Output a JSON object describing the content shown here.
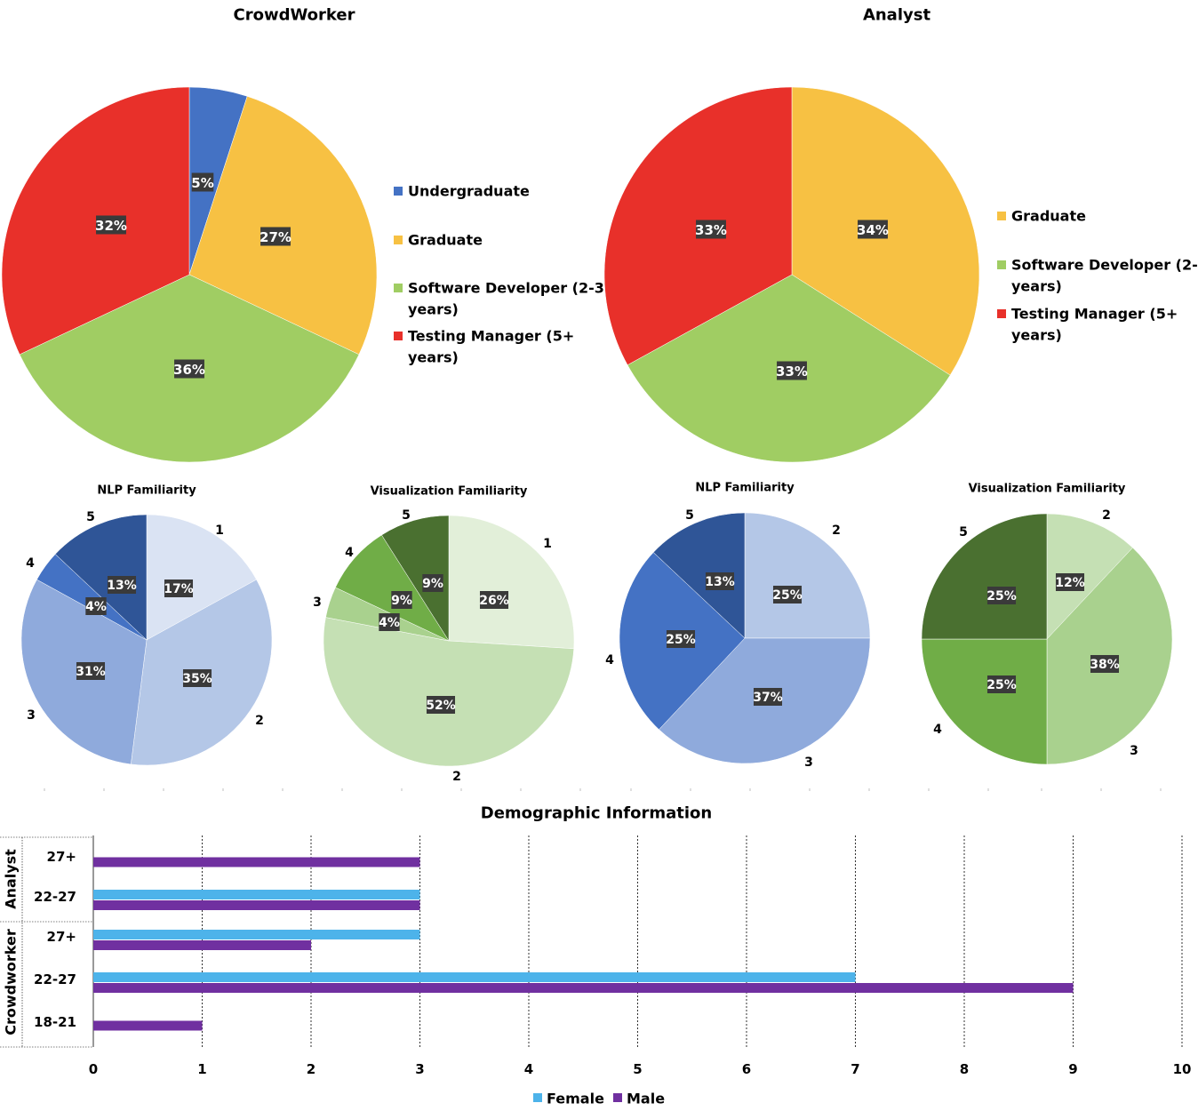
{
  "colors": {
    "label_bg": "#3a3a3a",
    "female": "#4db3ea",
    "male": "#7030a0"
  },
  "chart_data": [
    {
      "type": "pie",
      "title": "CrowdWorker",
      "slices": [
        {
          "label": "Undergraduate",
          "value": 5,
          "text": "5%",
          "color": "#4472c4"
        },
        {
          "label": "Graduate",
          "value": 27,
          "text": "27%",
          "color": "#f7c143"
        },
        {
          "label": "Software Developer (2-3 years)",
          "value": 36,
          "text": "36%",
          "color": "#a0cd63"
        },
        {
          "label": "Testing Manager (5+ years)",
          "value": 32,
          "text": "32%",
          "color": "#e8302a"
        }
      ],
      "legend": [
        {
          "lines": [
            "Undergraduate"
          ],
          "color": "#4472c4"
        },
        {
          "lines": [
            "Graduate"
          ],
          "color": "#f7c143"
        },
        {
          "lines": [
            "Software Developer (2-3",
            "years)"
          ],
          "color": "#a0cd63"
        },
        {
          "lines": [
            "Testing Manager (5+",
            "years)"
          ],
          "color": "#e8302a"
        }
      ],
      "legend_placement": "right"
    },
    {
      "type": "pie",
      "title": "Analyst",
      "slices": [
        {
          "label": "Graduate",
          "value": 34,
          "text": "34%",
          "color": "#f7c143"
        },
        {
          "label": "Software Developer (2-3 years)",
          "value": 33,
          "text": "33%",
          "color": "#a0cd63"
        },
        {
          "label": "Testing Manager (5+ years)",
          "value": 33,
          "text": "33%",
          "color": "#e8302a"
        }
      ],
      "legend": [
        {
          "lines": [
            "Graduate"
          ],
          "color": "#f7c143"
        },
        {
          "lines": [
            "Software Developer (2-3",
            "years)"
          ],
          "color": "#a0cd63"
        },
        {
          "lines": [
            "Testing Manager (5+",
            "years)"
          ],
          "color": "#e8302a"
        }
      ],
      "legend_placement": "right"
    },
    {
      "type": "pie",
      "title": "NLP Familiarity",
      "slices": [
        {
          "label": "1",
          "value": 17,
          "text": "17%",
          "color": "#dae3f3"
        },
        {
          "label": "2",
          "value": 35,
          "text": "35%",
          "color": "#b4c7e7"
        },
        {
          "label": "3",
          "value": 31,
          "text": "31%",
          "color": "#8faadc"
        },
        {
          "label": "4",
          "value": 4,
          "text": "4%",
          "color": "#4472c4"
        },
        {
          "label": "5",
          "value": 13,
          "text": "13%",
          "color": "#2f5597"
        }
      ]
    },
    {
      "type": "pie",
      "title": "Visualization Familiarity",
      "slices": [
        {
          "label": "1",
          "value": 26,
          "text": "26%",
          "color": "#e2efd9"
        },
        {
          "label": "2",
          "value": 52,
          "text": "52%",
          "color": "#c5e0b4"
        },
        {
          "label": "3",
          "value": 4,
          "text": "4%",
          "color": "#a9d18e"
        },
        {
          "label": "4",
          "value": 9,
          "text": "9%",
          "color": "#70ad47"
        },
        {
          "label": "5",
          "value": 9,
          "text": "9%",
          "color": "#4a7030"
        }
      ]
    },
    {
      "type": "pie",
      "title": "NLP Familiarity",
      "slices": [
        {
          "label": "2",
          "value": 25,
          "text": "25%",
          "color": "#b4c7e7"
        },
        {
          "label": "3",
          "value": 37,
          "text": "37%",
          "color": "#8faadc"
        },
        {
          "label": "4",
          "value": 25,
          "text": "25%",
          "color": "#4472c4"
        },
        {
          "label": "5",
          "value": 13,
          "text": "13%",
          "color": "#2f5597"
        }
      ]
    },
    {
      "type": "pie",
      "title": "Visualization Familiarity",
      "slices": [
        {
          "label": "2",
          "value": 12,
          "text": "12%",
          "color": "#c5e0b4"
        },
        {
          "label": "3",
          "value": 38,
          "text": "38%",
          "color": "#a9d18e"
        },
        {
          "label": "4",
          "value": 25,
          "text": "25%",
          "color": "#70ad47"
        },
        {
          "label": "5",
          "value": 25,
          "text": "25%",
          "color": "#4a7030"
        }
      ]
    },
    {
      "type": "bar",
      "orientation": "horizontal",
      "title": "Demographic Information",
      "groups": [
        {
          "name": "Analyst",
          "categories": [
            "27+",
            "22-27"
          ]
        },
        {
          "name": "Crowdworker",
          "categories": [
            "27+",
            "22-27",
            "18-21"
          ]
        }
      ],
      "categories": [
        "Analyst 27+",
        "Analyst 22-27",
        "Crowdworker 27+",
        "Crowdworker 22-27",
        "Crowdworker 18-21"
      ],
      "series": [
        {
          "name": "Female",
          "values": [
            0,
            3,
            3,
            7,
            0
          ],
          "color": "#4db3ea"
        },
        {
          "name": "Male",
          "values": [
            3,
            3,
            2,
            9,
            1
          ],
          "color": "#7030a0"
        }
      ],
      "xlim": [
        0,
        10
      ],
      "xticks": [
        "0",
        "1",
        "2",
        "3",
        "4",
        "5",
        "6",
        "7",
        "8",
        "9",
        "10"
      ],
      "grid": true,
      "legend_placement": "bottom"
    }
  ]
}
